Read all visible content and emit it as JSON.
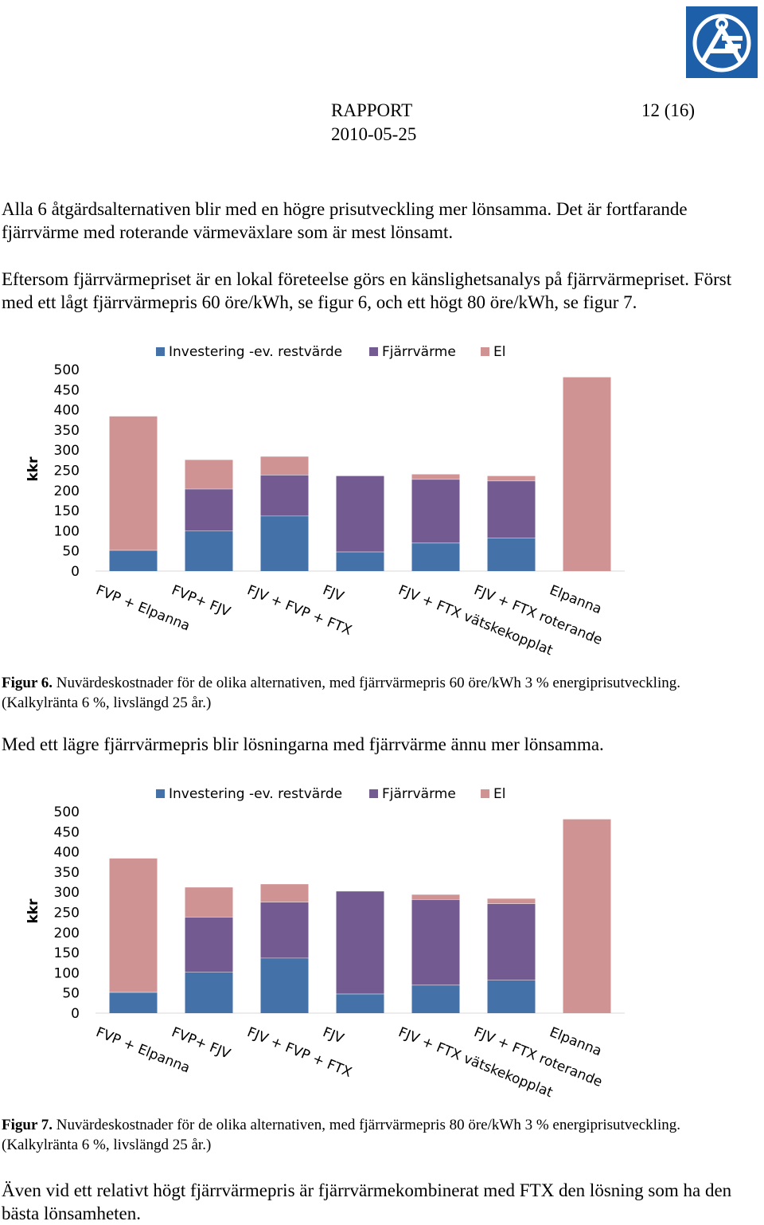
{
  "logo": {
    "name": "af-logo",
    "color": "#1d5fa8"
  },
  "header": {
    "title": "RAPPORT",
    "page": "12 (16)",
    "date": "2010-05-25"
  },
  "paragraphs": {
    "p1": "Alla 6 åtgärdsalternativen blir med en högre prisutveckling mer lönsamma. Det är fortfarande fjärrvärme med roterande värmeväxlare som är mest lönsamt.",
    "p2": "Eftersom fjärrvärmepriset är en lokal företeelse görs en känslighetsanalys på fjärrvärmepriset. Först med ett lågt fjärrvärmepris 60 öre/kWh, se figur 6, och ett högt 80 öre/kWh, se figur 7.",
    "p3": "Med ett lägre fjärrvärmepris blir lösningarna med fjärrvärme ännu mer lönsamma.",
    "p4": "Även vid ett relativt högt fjärrvärmepris är fjärrvärmekombinerat med FTX den lösning som ha den bästa lönsamheten."
  },
  "captions": {
    "fig6_label": "Figur 6.",
    "fig6_text": " Nuvärdeskostnader för de olika alternativen, med fjärrvärmepris 60 öre/kWh 3 % energiprisutveckling. (Kalkylränta 6 %, livslängd 25 år.)",
    "fig7_label": "Figur 7.",
    "fig7_text": " Nuvärdeskostnader för de olika alternativen, med fjärrvärmepris 80 öre/kWh 3 % energiprisutveckling. (Kalkylränta 6 %, livslängd 25 år.)"
  },
  "chart_data": [
    {
      "type": "bar",
      "stacked": true,
      "ylabel": "kkr",
      "ylim": [
        0,
        500
      ],
      "yticks": [
        0,
        50,
        100,
        150,
        200,
        250,
        300,
        350,
        400,
        450,
        500
      ],
      "grid": false,
      "legend_position": "top",
      "categories": [
        "FVP + Elpanna",
        "FVP+ FJV",
        "FJV + FVP + FTX",
        "FJV",
        "FJV + FTX vätskekopplat",
        "FJV + FTX roterande",
        "Elpanna"
      ],
      "series": [
        {
          "name": "Investering -ev. restvärde",
          "color": "#4472a8",
          "values": [
            52,
            100,
            137,
            48,
            70,
            82,
            0
          ]
        },
        {
          "name": "Fjärrvärme",
          "color": "#735a90",
          "values": [
            0,
            104,
            102,
            189,
            158,
            142,
            0
          ]
        },
        {
          "name": "El",
          "color": "#d09394",
          "values": [
            333,
            73,
            46,
            0,
            13,
            13,
            482
          ]
        }
      ]
    },
    {
      "type": "bar",
      "stacked": true,
      "ylabel": "kkr",
      "ylim": [
        0,
        500
      ],
      "yticks": [
        0,
        50,
        100,
        150,
        200,
        250,
        300,
        350,
        400,
        450,
        500
      ],
      "grid": false,
      "legend_position": "top",
      "categories": [
        "FVP + Elpanna",
        "FVP+ FJV",
        "FJV + FVP + FTX",
        "FJV",
        "FJV + FTX vätskekopplat",
        "FJV + FTX roterande",
        "Elpanna"
      ],
      "series": [
        {
          "name": "Investering -ev. restvärde",
          "color": "#4472a8",
          "values": [
            52,
            102,
            137,
            48,
            70,
            82,
            0
          ]
        },
        {
          "name": "Fjärrvärme",
          "color": "#735a90",
          "values": [
            0,
            137,
            139,
            255,
            212,
            190,
            0
          ]
        },
        {
          "name": "El",
          "color": "#d09394",
          "values": [
            333,
            74,
            45,
            0,
            13,
            13,
            482
          ]
        }
      ]
    }
  ]
}
